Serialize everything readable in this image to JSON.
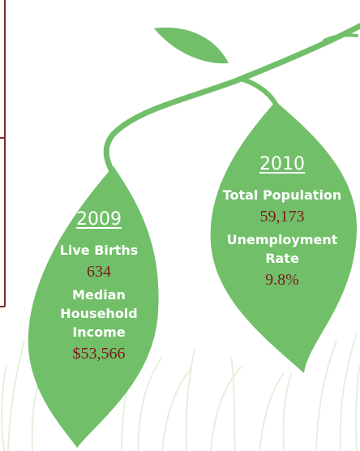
{
  "leaves": [
    {
      "year": "2009",
      "stats": [
        {
          "label": "Live Births",
          "value": "634"
        },
        {
          "label": "Median Household Income",
          "value": "$53,566"
        }
      ]
    },
    {
      "year": "2010",
      "stats": [
        {
          "label": "Total Population",
          "value": "59,173"
        },
        {
          "label": "Unemployment Rate",
          "value": "9.8%"
        }
      ]
    }
  ]
}
